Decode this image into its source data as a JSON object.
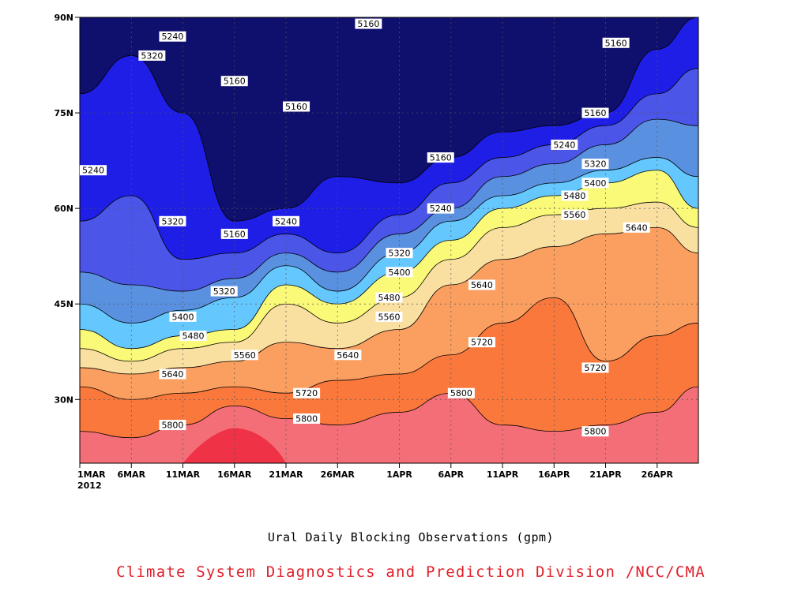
{
  "chart_data": {
    "type": "heatmap",
    "title": "Ural Daily Blocking Observations (gpm)",
    "credit": "Climate System Diagnostics and Prediction Division /NCC/CMA",
    "x_axis": {
      "start": "1MAR",
      "year": "2012",
      "ticks": [
        "1MAR",
        "6MAR",
        "11MAR",
        "16MAR",
        "21MAR",
        "26MAR",
        "1APR",
        "6APR",
        "11APR",
        "16APR",
        "21APR",
        "26APR"
      ],
      "tick_days": [
        0,
        5,
        10,
        15,
        20,
        25,
        31,
        36,
        41,
        46,
        51,
        56
      ],
      "range_days": [
        0,
        60
      ]
    },
    "y_axis": {
      "ticks": [
        "30N",
        "45N",
        "60N",
        "75N",
        "90N"
      ],
      "tick_values": [
        30,
        45,
        60,
        75,
        90
      ],
      "range": [
        20,
        90
      ]
    },
    "grid": true,
    "contour_levels": [
      5160,
      5240,
      5320,
      5400,
      5480,
      5560,
      5640,
      5720,
      5800,
      5880
    ],
    "fill_colors": [
      "#0f0f6e",
      "#1e1ee6",
      "#4b55e8",
      "#5a90e0",
      "#64c8ff",
      "#fafa78",
      "#fae0a0",
      "#fa9f60",
      "#fa783c",
      "#f46e78",
      "#f03246"
    ],
    "isolines_by_day": {
      "days": [
        0,
        5,
        10,
        15,
        20,
        25,
        31,
        36,
        41,
        46,
        51,
        56,
        60
      ],
      "5800": [
        25,
        24,
        26,
        29,
        27,
        26,
        28,
        31,
        26,
        25,
        26,
        28,
        32
      ],
      "5720": [
        32,
        30,
        31,
        32,
        31,
        33,
        34,
        37,
        42,
        46,
        36,
        40,
        42
      ],
      "5640": [
        35,
        34,
        35,
        36,
        39,
        38,
        41,
        48,
        52,
        54,
        56,
        57,
        53
      ],
      "5560": [
        38,
        36,
        38,
        39,
        45,
        42,
        46,
        52,
        57,
        59,
        60,
        61,
        57
      ],
      "5480": [
        41,
        38,
        40,
        41,
        48,
        45,
        50,
        55,
        60,
        62,
        64,
        66,
        60
      ],
      "5400": [
        45,
        42,
        44,
        46,
        51,
        47,
        53,
        58,
        62,
        64,
        66,
        68,
        65
      ],
      "5320": [
        50,
        48,
        47,
        49,
        53,
        50,
        56,
        60,
        65,
        67,
        70,
        74,
        73
      ],
      "5240": [
        58,
        62,
        52,
        53,
        56,
        53,
        59,
        64,
        68,
        70,
        73,
        78,
        82
      ],
      "5160": [
        78,
        84,
        75,
        58,
        60,
        65,
        64,
        68,
        72,
        73,
        75,
        85,
        90
      ]
    },
    "contour_labels": [
      {
        "text": "5160",
        "day": 28,
        "lat": 89
      },
      {
        "text": "5240",
        "day": 9,
        "lat": 87
      },
      {
        "text": "5320",
        "day": 7,
        "lat": 84
      },
      {
        "text": "5160",
        "day": 52,
        "lat": 86
      },
      {
        "text": "5160",
        "day": 15,
        "lat": 80
      },
      {
        "text": "5160",
        "day": 21,
        "lat": 76
      },
      {
        "text": "5240",
        "day": 0,
        "lat": 66
      },
      {
        "text": "5160",
        "day": 35,
        "lat": 68
      },
      {
        "text": "5160",
        "day": 50,
        "lat": 75
      },
      {
        "text": "5240",
        "day": 47,
        "lat": 70
      },
      {
        "text": "5320",
        "day": 50,
        "lat": 67
      },
      {
        "text": "5400",
        "day": 50,
        "lat": 64
      },
      {
        "text": "5480",
        "day": 48,
        "lat": 62
      },
      {
        "text": "5560",
        "day": 48,
        "lat": 59
      },
      {
        "text": "5640",
        "day": 54,
        "lat": 57
      },
      {
        "text": "5240",
        "day": 35,
        "lat": 60
      },
      {
        "text": "5320",
        "day": 9,
        "lat": 58
      },
      {
        "text": "5160",
        "day": 15,
        "lat": 56
      },
      {
        "text": "5240",
        "day": 20,
        "lat": 58
      },
      {
        "text": "5320",
        "day": 31,
        "lat": 53
      },
      {
        "text": "5400",
        "day": 31,
        "lat": 50
      },
      {
        "text": "5480",
        "day": 30,
        "lat": 46
      },
      {
        "text": "5560",
        "day": 30,
        "lat": 43
      },
      {
        "text": "5320",
        "day": 14,
        "lat": 47
      },
      {
        "text": "5400",
        "day": 10,
        "lat": 43
      },
      {
        "text": "5480",
        "day": 11,
        "lat": 40
      },
      {
        "text": "5560",
        "day": 16,
        "lat": 37
      },
      {
        "text": "5640",
        "day": 26,
        "lat": 37
      },
      {
        "text": "5640",
        "day": 39,
        "lat": 48
      },
      {
        "text": "5720",
        "day": 39,
        "lat": 39
      },
      {
        "text": "5720",
        "day": 50,
        "lat": 35
      },
      {
        "text": "5640",
        "day": 9,
        "lat": 34
      },
      {
        "text": "5720",
        "day": 22,
        "lat": 31
      },
      {
        "text": "5800",
        "day": 37,
        "lat": 31
      },
      {
        "text": "5800",
        "day": 9,
        "lat": 26
      },
      {
        "text": "5800",
        "day": 22,
        "lat": 27
      },
      {
        "text": "5800",
        "day": 50,
        "lat": 25
      }
    ]
  }
}
